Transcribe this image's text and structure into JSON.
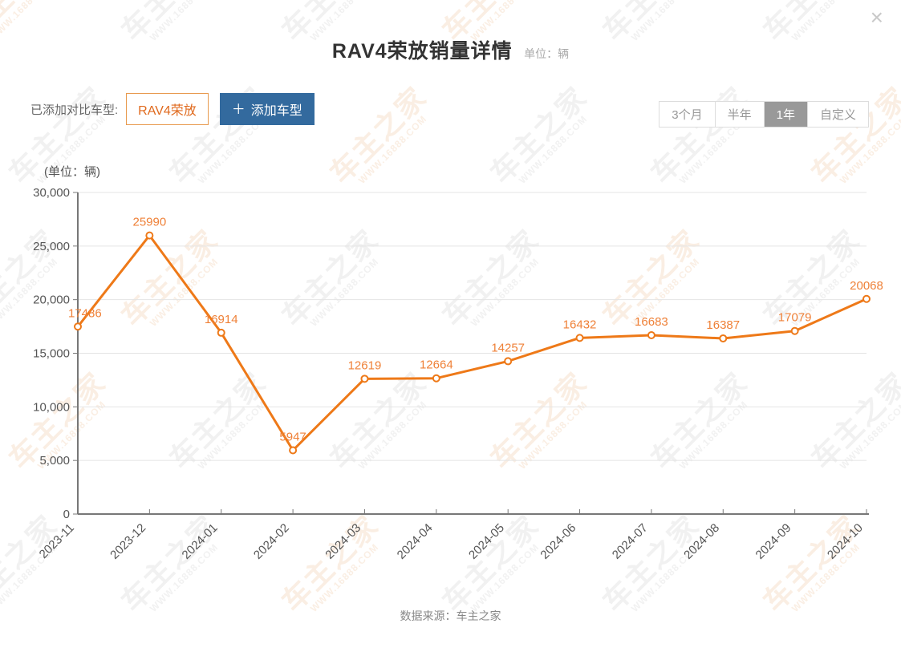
{
  "window": {
    "close_glyph": "×"
  },
  "header": {
    "title": "RAV4荣放销量详情",
    "unit_label": "单位：辆"
  },
  "compare_bar": {
    "label": "已添加对比车型:",
    "model_chip": "RAV4荣放",
    "add_icon": "＋",
    "add_label": "添加车型"
  },
  "range_selector": {
    "options": [
      {
        "label": "3个月",
        "active": false
      },
      {
        "label": "半年",
        "active": false
      },
      {
        "label": "1年",
        "active": true
      },
      {
        "label": "自定义",
        "active": false
      }
    ]
  },
  "chart": {
    "axis_unit_label": "(单位：辆)"
  },
  "chart_data": {
    "type": "line",
    "title": "RAV4荣放销量详情",
    "categories": [
      "2023-11",
      "2023-12",
      "2024-01",
      "2024-02",
      "2024-03",
      "2024-04",
      "2024-05",
      "2024-06",
      "2024-07",
      "2024-08",
      "2024-09",
      "2024-10"
    ],
    "series": [
      {
        "name": "RAV4荣放",
        "values": [
          17486,
          25990,
          16914,
          5947,
          12619,
          12664,
          14257,
          16432,
          16683,
          16387,
          17079,
          20068
        ]
      }
    ],
    "xlabel": "",
    "ylabel": "(单位：辆)",
    "ylim": [
      0,
      30000
    ],
    "ytick_step": 5000,
    "grid": true,
    "legend_position": "none",
    "line_color": "#ee7918",
    "label_color": "#ef8138",
    "point_fill": "#ffffff",
    "axis_color": "#777777",
    "grid_color": "#e4e4e4"
  },
  "footer": {
    "source": "数据来源：车主之家"
  },
  "watermark": {
    "line1": "车主之家",
    "line2": "WWW.16888.COM"
  },
  "colors": {
    "accent_orange": "#ee7918",
    "button_blue": "#336a9e",
    "active_gray": "#999999"
  }
}
